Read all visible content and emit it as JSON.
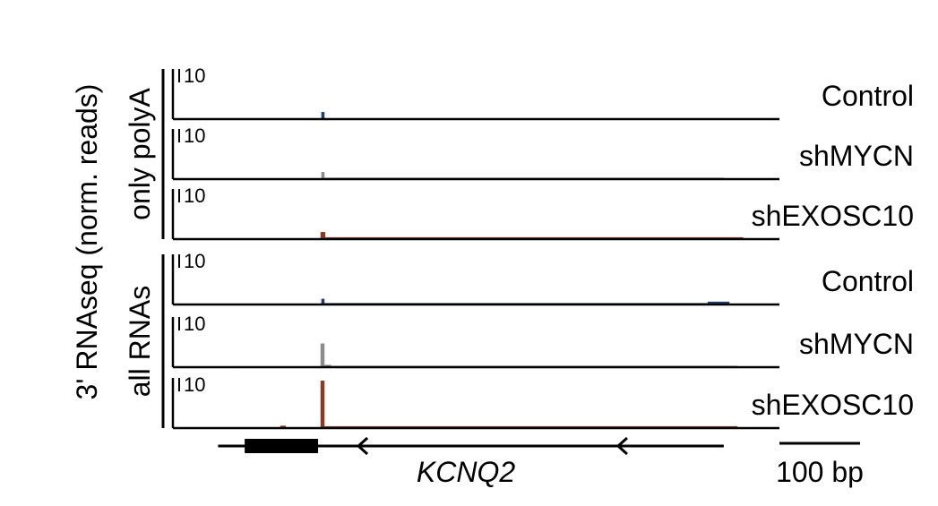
{
  "chart_data": {
    "type": "genome-tracks",
    "ylabel": "3' RNAseq (norm. reads)",
    "ylim": [
      0,
      10
    ],
    "yticks": [
      10
    ],
    "xlim": [
      0,
      752
    ],
    "groups": [
      {
        "label": "only polyA",
        "tracks": [
          0,
          1,
          2
        ]
      },
      {
        "label": "all RNAs",
        "tracks": [
          3,
          4,
          5
        ]
      }
    ],
    "tracks": [
      {
        "name": "Control",
        "color": "#1f3f6e",
        "segments": [
          {
            "start": 184,
            "end": 188,
            "value": 1.5
          }
        ]
      },
      {
        "name": "shMYCN",
        "color": "#8c8c8c",
        "segments": [
          {
            "start": 184,
            "end": 188,
            "value": 1.5
          },
          {
            "start": 188,
            "end": 683,
            "value": 0.3
          }
        ]
      },
      {
        "name": "shEXOSC10",
        "color": "#8b3a26",
        "segments": [
          {
            "start": 183,
            "end": 189,
            "value": 1.5
          },
          {
            "start": 189,
            "end": 707,
            "value": 0.4
          }
        ]
      },
      {
        "name": "Control",
        "color": "#1f3f6e",
        "segments": [
          {
            "start": 184,
            "end": 188,
            "value": 1.2
          },
          {
            "start": 188,
            "end": 690,
            "value": 0.3
          },
          {
            "start": 663,
            "end": 690,
            "value": 0.6
          }
        ]
      },
      {
        "name": "shMYCN",
        "color": "#8c8c8c",
        "segments": [
          {
            "start": 72,
            "end": 183,
            "value": 0.2
          },
          {
            "start": 183,
            "end": 188,
            "value": 5
          },
          {
            "start": 188,
            "end": 196,
            "value": 0.5
          },
          {
            "start": 196,
            "end": 700,
            "value": 0.3
          }
        ]
      },
      {
        "name": "shEXOSC10",
        "color": "#8b3a26",
        "segments": [
          {
            "start": 133,
            "end": 140,
            "value": 0.5
          },
          {
            "start": 183,
            "end": 188,
            "value": 10
          },
          {
            "start": 188,
            "end": 700,
            "value": 0.4
          }
        ]
      }
    ],
    "gene": {
      "name": "KCNQ2",
      "start": 56,
      "end": 683,
      "exon_start": 89,
      "exon_end": 180,
      "arrows": [
        230,
        552
      ]
    },
    "scale_bar": {
      "label": "100 bp",
      "length": 100
    }
  }
}
